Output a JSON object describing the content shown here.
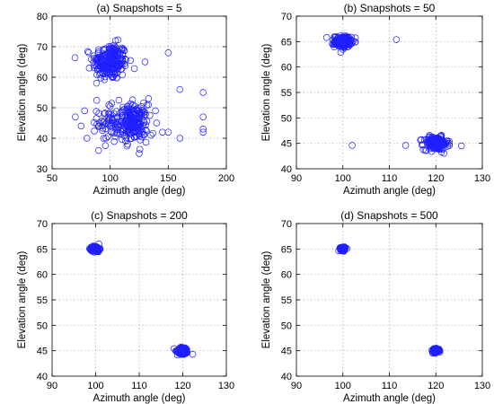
{
  "chart_data": [
    {
      "type": "scatter",
      "title": "(a) Snapshots = 5",
      "xlabel": "Azimuth angle (deg)",
      "ylabel": "Elevation angle (deg)",
      "xlim": [
        50,
        200
      ],
      "ylim": [
        30,
        80
      ],
      "xticks": [
        50,
        100,
        150,
        200
      ],
      "yticks": [
        30,
        40,
        50,
        60,
        70,
        80
      ],
      "grid": true,
      "marker": "open-circle",
      "color": "#1f1fff",
      "clusters": [
        {
          "center": [
            100,
            65
          ],
          "spread": [
            7.5,
            3.0
          ],
          "count": 240
        },
        {
          "center": [
            100,
            45
          ],
          "spread": [
            5.5,
            3.2
          ],
          "count": 70
        },
        {
          "center": [
            120,
            45
          ],
          "spread": [
            6.0,
            3.0
          ],
          "count": 200
        }
      ],
      "outliers": [
        [
          180,
          55
        ],
        [
          180,
          47
        ],
        [
          180,
          43
        ],
        [
          180,
          42
        ],
        [
          160,
          56
        ],
        [
          160,
          40
        ],
        [
          150,
          68
        ],
        [
          150,
          42
        ],
        [
          140,
          45
        ],
        [
          139,
          49
        ],
        [
          135,
          41
        ],
        [
          130,
          65
        ],
        [
          125,
          35
        ],
        [
          75,
          44
        ],
        [
          80,
          40
        ],
        [
          82,
          63
        ],
        [
          78,
          49
        ],
        [
          70,
          47
        ],
        [
          90,
          36
        ],
        [
          86,
          67
        ],
        [
          145,
          42
        ],
        [
          133,
          53
        ]
      ]
    },
    {
      "type": "scatter",
      "title": "(b) Snapshots = 50",
      "xlabel": "Azimuth angle (deg)",
      "ylabel": "Elevation angle (deg)",
      "xlim": [
        90,
        130
      ],
      "ylim": [
        40,
        70
      ],
      "xticks": [
        90,
        100,
        110,
        120,
        130
      ],
      "yticks": [
        40,
        45,
        50,
        55,
        60,
        65,
        70
      ],
      "grid": true,
      "marker": "open-circle",
      "color": "#1f1fff",
      "clusters": [
        {
          "center": [
            100,
            65
          ],
          "spread": [
            0.9,
            0.55
          ],
          "count": 170
        },
        {
          "center": [
            120,
            45
          ],
          "spread": [
            1.3,
            0.65
          ],
          "count": 190
        }
      ],
      "outliers": [
        [
          111.5,
          65.4
        ],
        [
          102,
          44.6
        ],
        [
          125.5,
          44.5
        ],
        [
          113.5,
          44.6
        ],
        [
          96.5,
          65.8
        ]
      ]
    },
    {
      "type": "scatter",
      "title": "(c) Snapshots = 200",
      "xlabel": "Azimuth angle (deg)",
      "ylabel": "Elevation angle (deg)",
      "xlim": [
        90,
        130
      ],
      "ylim": [
        40,
        70
      ],
      "xticks": [
        90,
        100,
        110,
        120,
        130
      ],
      "yticks": [
        40,
        45,
        50,
        55,
        60,
        65,
        70
      ],
      "grid": true,
      "marker": "open-circle",
      "color": "#1f1fff",
      "clusters": [
        {
          "center": [
            100,
            65
          ],
          "spread": [
            0.45,
            0.28
          ],
          "count": 150
        },
        {
          "center": [
            120,
            45
          ],
          "spread": [
            0.6,
            0.35
          ],
          "count": 160
        }
      ],
      "outliers": [
        [
          122.3,
          44.3
        ],
        [
          118,
          45.4
        ]
      ]
    },
    {
      "type": "scatter",
      "title": "(d) Snapshots = 500",
      "xlabel": "Azimuth angle (deg)",
      "ylabel": "Elevation angle (deg)",
      "xlim": [
        90,
        130
      ],
      "ylim": [
        40,
        70
      ],
      "xticks": [
        90,
        100,
        110,
        120,
        130
      ],
      "yticks": [
        40,
        45,
        50,
        55,
        60,
        65,
        70
      ],
      "grid": true,
      "marker": "open-circle",
      "color": "#1f1fff",
      "clusters": [
        {
          "center": [
            100,
            65
          ],
          "spread": [
            0.28,
            0.17
          ],
          "count": 120
        },
        {
          "center": [
            120,
            45
          ],
          "spread": [
            0.38,
            0.2
          ],
          "count": 130
        }
      ],
      "outliers": []
    }
  ]
}
